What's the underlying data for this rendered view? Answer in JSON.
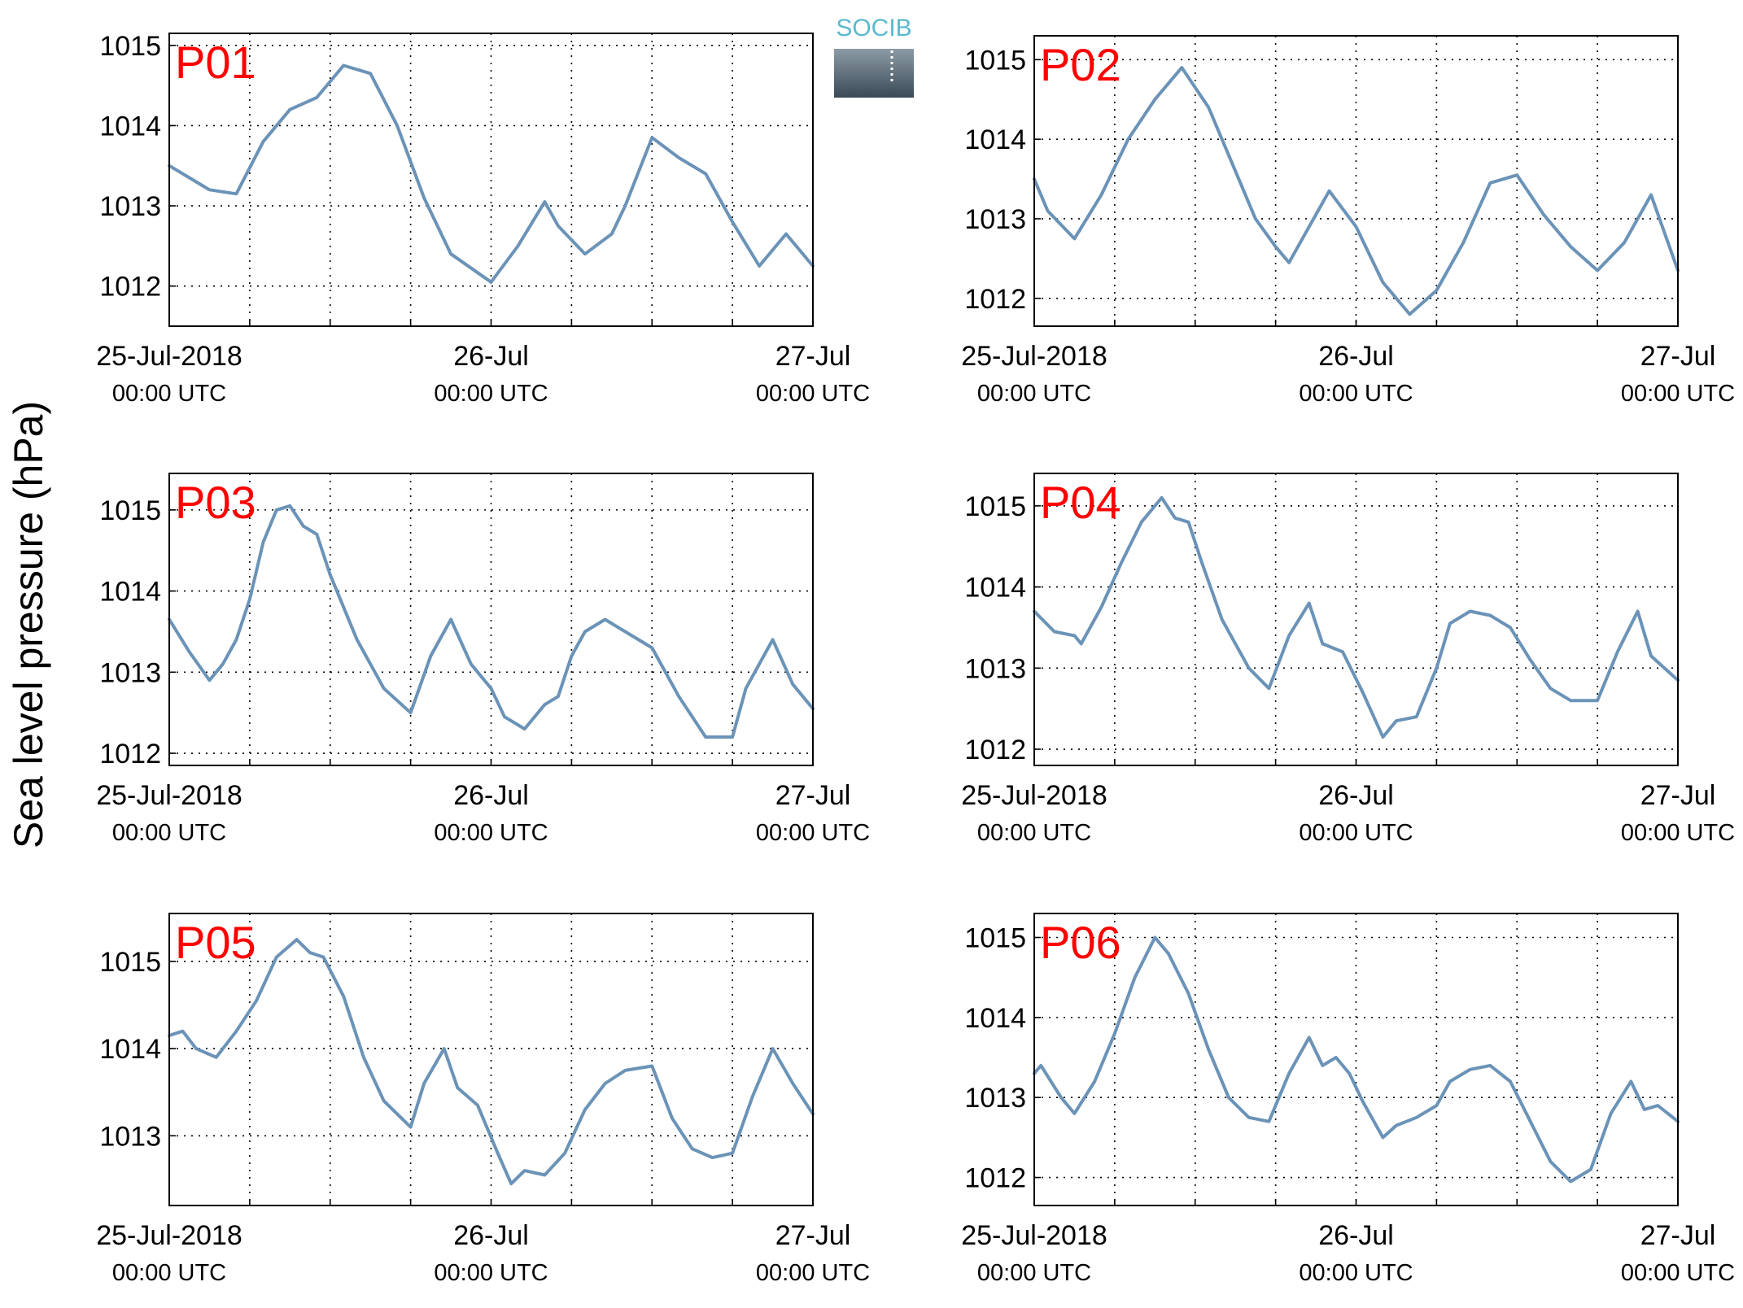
{
  "figure": {
    "ylabel": "Sea level pressure (hPa)",
    "logo_text": "SOCIB",
    "line_color": "#6b93b7",
    "station_label_color": "#ff0000",
    "grid": true
  },
  "chart_data": [
    {
      "type": "line",
      "station": "P01",
      "x_range": [
        "2018-07-25 00:00 UTC",
        "2018-07-27 00:00 UTC"
      ],
      "x_ticks": [
        {
          "line1": "25-Jul-2018",
          "line2": "00:00 UTC"
        },
        {
          "line1": "26-Jul",
          "line2": "00:00 UTC"
        },
        {
          "line1": "27-Jul",
          "line2": "00:00 UTC"
        }
      ],
      "ylim": [
        1011.5,
        1015.15
      ],
      "yticks": [
        1012,
        1013,
        1014,
        1015
      ],
      "x_hours": [
        0,
        3,
        5,
        7,
        9,
        11,
        13,
        15,
        17,
        19,
        21,
        24,
        26,
        28,
        29,
        31,
        33,
        34,
        36,
        38,
        40,
        42,
        44,
        46,
        48
      ],
      "values": [
        1013.5,
        1013.2,
        1013.15,
        1013.8,
        1014.2,
        1014.35,
        1014.75,
        1014.65,
        1014.0,
        1013.1,
        1012.4,
        1012.05,
        1012.5,
        1013.05,
        1012.75,
        1012.4,
        1012.65,
        1013.0,
        1013.85,
        1013.6,
        1013.4,
        1012.8,
        1012.25,
        1012.65,
        1012.25
      ]
    },
    {
      "type": "line",
      "station": "P02",
      "x_range": [
        "2018-07-25 00:00 UTC",
        "2018-07-27 00:00 UTC"
      ],
      "x_ticks": [
        {
          "line1": "25-Jul-2018",
          "line2": "00:00 UTC"
        },
        {
          "line1": "26-Jul",
          "line2": "00:00 UTC"
        },
        {
          "line1": "27-Jul",
          "line2": "00:00 UTC"
        }
      ],
      "ylim": [
        1011.65,
        1015.3
      ],
      "yticks": [
        1012,
        1013,
        1014,
        1015
      ],
      "x_hours": [
        0,
        1,
        3,
        5,
        7,
        9,
        11,
        13,
        15,
        16.5,
        18,
        19,
        20.5,
        22,
        24,
        26,
        28,
        30,
        32,
        34,
        36,
        38,
        40,
        42,
        44,
        46,
        48
      ],
      "values": [
        1013.5,
        1013.1,
        1012.75,
        1013.3,
        1014.0,
        1014.5,
        1014.9,
        1014.4,
        1013.6,
        1013.0,
        1012.65,
        1012.45,
        1012.9,
        1013.35,
        1012.9,
        1012.2,
        1011.8,
        1012.1,
        1012.7,
        1013.45,
        1013.55,
        1013.05,
        1012.65,
        1012.35,
        1012.7,
        1013.3,
        1012.35
      ]
    },
    {
      "type": "line",
      "station": "P03",
      "x_range": [
        "2018-07-25 00:00 UTC",
        "2018-07-27 00:00 UTC"
      ],
      "x_ticks": [
        {
          "line1": "25-Jul-2018",
          "line2": "00:00 UTC"
        },
        {
          "line1": "26-Jul",
          "line2": "00:00 UTC"
        },
        {
          "line1": "27-Jul",
          "line2": "00:00 UTC"
        }
      ],
      "ylim": [
        1011.85,
        1015.45
      ],
      "yticks": [
        1012,
        1013,
        1014,
        1015
      ],
      "x_hours": [
        0,
        1.5,
        3,
        4,
        5,
        6,
        7,
        8,
        9,
        10,
        11,
        12,
        14,
        16,
        18,
        19.5,
        21,
        22.5,
        24,
        25,
        26.5,
        28,
        29,
        30,
        31,
        32.5,
        34,
        36,
        38,
        40,
        42,
        43,
        45,
        46.5,
        48
      ],
      "values": [
        1013.65,
        1013.25,
        1012.9,
        1013.1,
        1013.4,
        1013.9,
        1014.6,
        1015.0,
        1015.05,
        1014.8,
        1014.7,
        1014.2,
        1013.4,
        1012.8,
        1012.5,
        1013.2,
        1013.65,
        1013.1,
        1012.8,
        1012.45,
        1012.3,
        1012.6,
        1012.7,
        1013.2,
        1013.5,
        1013.65,
        1013.5,
        1013.3,
        1012.7,
        1012.2,
        1012.2,
        1012.8,
        1013.4,
        1012.85,
        1012.55
      ]
    },
    {
      "type": "line",
      "station": "P04",
      "x_range": [
        "2018-07-25 00:00 UTC",
        "2018-07-27 00:00 UTC"
      ],
      "x_ticks": [
        {
          "line1": "25-Jul-2018",
          "line2": "00:00 UTC"
        },
        {
          "line1": "26-Jul",
          "line2": "00:00 UTC"
        },
        {
          "line1": "27-Jul",
          "line2": "00:00 UTC"
        }
      ],
      "ylim": [
        1011.8,
        1015.4
      ],
      "yticks": [
        1012,
        1013,
        1014,
        1015
      ],
      "x_hours": [
        0,
        1.5,
        3,
        3.5,
        5,
        6.5,
        8,
        9.5,
        10.5,
        11.5,
        12.5,
        14,
        16,
        17.5,
        19,
        20.5,
        21.5,
        23,
        24.5,
        26,
        27,
        28.5,
        30,
        31,
        32.5,
        34,
        35.5,
        37,
        38.5,
        40,
        42,
        43.5,
        45,
        46,
        48
      ],
      "values": [
        1013.7,
        1013.45,
        1013.4,
        1013.3,
        1013.75,
        1014.3,
        1014.8,
        1015.1,
        1014.85,
        1014.8,
        1014.3,
        1013.6,
        1013.0,
        1012.75,
        1013.4,
        1013.8,
        1013.3,
        1013.2,
        1012.7,
        1012.15,
        1012.35,
        1012.4,
        1013.0,
        1013.55,
        1013.7,
        1013.65,
        1013.5,
        1013.1,
        1012.75,
        1012.6,
        1012.6,
        1013.2,
        1013.7,
        1013.15,
        1012.85
      ]
    },
    {
      "type": "line",
      "station": "P05",
      "x_range": [
        "2018-07-25 00:00 UTC",
        "2018-07-27 00:00 UTC"
      ],
      "x_ticks": [
        {
          "line1": "25-Jul-2018",
          "line2": "00:00 UTC"
        },
        {
          "line1": "26-Jul",
          "line2": "00:00 UTC"
        },
        {
          "line1": "27-Jul",
          "line2": "00:00 UTC"
        }
      ],
      "ylim": [
        1012.2,
        1015.55
      ],
      "yticks": [
        1013,
        1014,
        1015
      ],
      "x_hours": [
        0,
        1,
        2,
        3.5,
        5,
        6.5,
        8,
        9.5,
        10.5,
        11.5,
        13,
        14.5,
        16,
        18,
        19,
        20.5,
        21.5,
        23,
        24.5,
        25.5,
        26.5,
        28,
        29.5,
        31,
        32.5,
        34,
        36,
        37.5,
        39,
        40.5,
        42,
        43.5,
        45,
        46.5,
        48
      ],
      "values": [
        1014.15,
        1014.2,
        1014.0,
        1013.9,
        1014.2,
        1014.55,
        1015.05,
        1015.25,
        1015.1,
        1015.05,
        1014.6,
        1013.9,
        1013.4,
        1013.1,
        1013.6,
        1014.0,
        1013.55,
        1013.35,
        1012.8,
        1012.45,
        1012.6,
        1012.55,
        1012.8,
        1013.3,
        1013.6,
        1013.75,
        1013.8,
        1013.2,
        1012.85,
        1012.75,
        1012.8,
        1013.45,
        1014.0,
        1013.6,
        1013.25
      ]
    },
    {
      "type": "line",
      "station": "P06",
      "x_range": [
        "2018-07-25 00:00 UTC",
        "2018-07-27 00:00 UTC"
      ],
      "x_ticks": [
        {
          "line1": "25-Jul-2018",
          "line2": "00:00 UTC"
        },
        {
          "line1": "26-Jul",
          "line2": "00:00 UTC"
        },
        {
          "line1": "27-Jul",
          "line2": "00:00 UTC"
        }
      ],
      "ylim": [
        1011.65,
        1015.3
      ],
      "yticks": [
        1012,
        1013,
        1014,
        1015
      ],
      "x_hours": [
        0,
        0.5,
        2,
        3,
        4.5,
        6,
        7.5,
        9,
        10,
        11.5,
        13,
        14.5,
        16,
        17.5,
        19,
        20.5,
        21.5,
        22.5,
        23.5,
        24.5,
        26,
        27,
        28.5,
        30,
        31,
        32.5,
        34,
        35.5,
        37,
        38.5,
        40,
        41.5,
        43,
        44.5,
        45.5,
        46.5,
        48
      ],
      "values": [
        1013.3,
        1013.4,
        1013.0,
        1012.8,
        1013.2,
        1013.8,
        1014.5,
        1015.0,
        1014.8,
        1014.3,
        1013.6,
        1013.0,
        1012.75,
        1012.7,
        1013.3,
        1013.75,
        1013.4,
        1013.5,
        1013.3,
        1012.95,
        1012.5,
        1012.65,
        1012.75,
        1012.9,
        1013.2,
        1013.35,
        1013.4,
        1013.2,
        1012.7,
        1012.2,
        1011.95,
        1012.1,
        1012.8,
        1013.2,
        1012.85,
        1012.9,
        1012.7
      ]
    }
  ]
}
